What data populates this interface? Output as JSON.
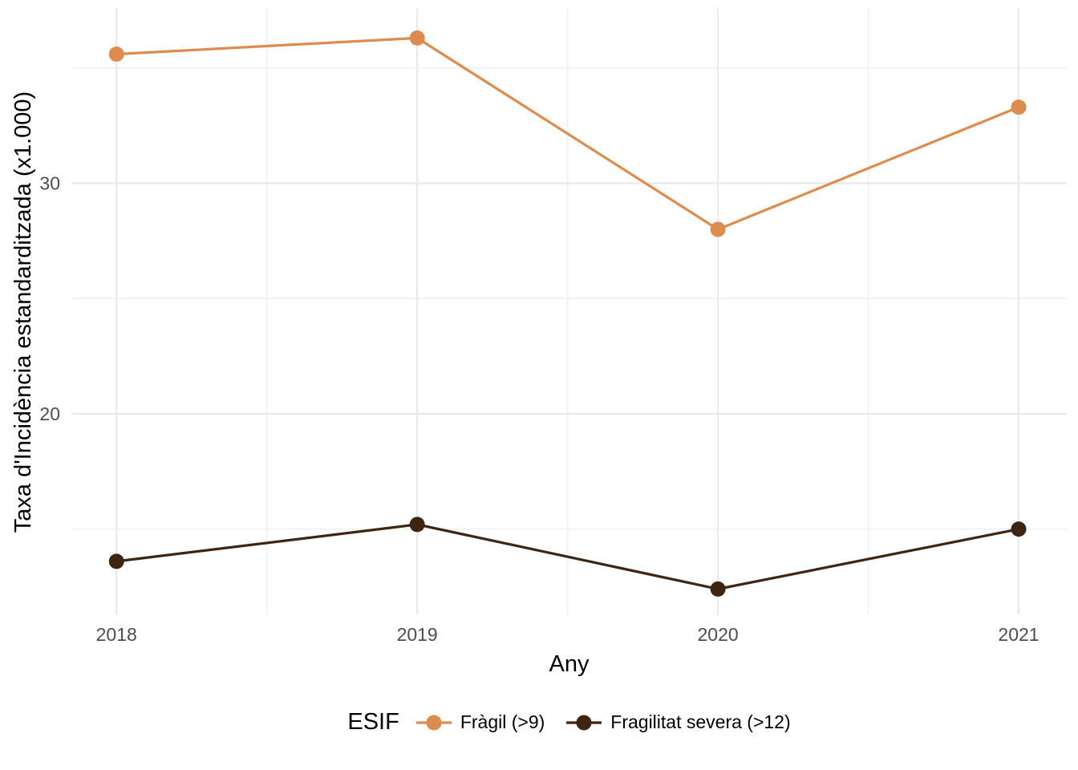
{
  "chart_data": {
    "type": "line",
    "title": "",
    "xlabel": "Any",
    "ylabel": "Taxa d'Incidència estandarditzada (x1.000)",
    "legend_title": "ESIF",
    "legend_position": "bottom",
    "x": [
      2018,
      2019,
      2020,
      2021
    ],
    "x_tick_labels": [
      "2018",
      "2019",
      "2020",
      "2021"
    ],
    "y_ticks": [
      20,
      30
    ],
    "y_tick_labels": [
      "20",
      "30"
    ],
    "y_minor_ticks": [
      15,
      25,
      35
    ],
    "x_minor_ticks": [
      2018.5,
      2019.5,
      2020.5
    ],
    "xlim": [
      2017.85,
      2021.16
    ],
    "ylim": [
      11.3,
      37.6
    ],
    "grid": true,
    "series": [
      {
        "name": "Fràgil (>9)",
        "color": "#DD8C4E",
        "values": [
          35.6,
          36.3,
          28.0,
          33.3
        ]
      },
      {
        "name": "Fragilitat severa (>12)",
        "color": "#3E2512",
        "values": [
          13.6,
          15.2,
          12.4,
          15.0
        ]
      }
    ]
  },
  "colors": {
    "background": "#FFFFFF",
    "grid_major": "#E9E9E9",
    "grid_minor": "#F1F1F1",
    "tick_label": "#4D4D4D",
    "axis_title": "#000000"
  }
}
